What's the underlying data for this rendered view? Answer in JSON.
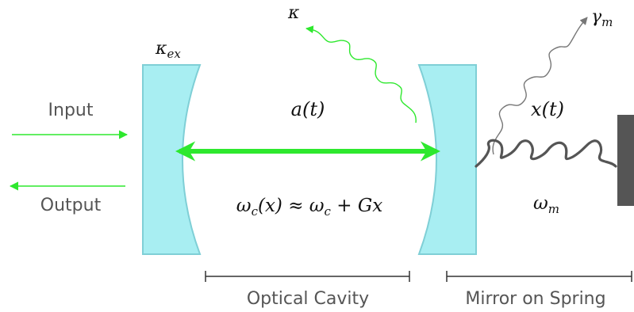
{
  "labels": {
    "input": "Input",
    "output": "Output",
    "kappa_ex": "κex",
    "kappa": "κ",
    "gamma_m": "γm",
    "a_t": "a(t)",
    "x_t": "x(t)",
    "omega_c_relation": "ωc(x) ≈ ωc + Gx",
    "omega_m": "ωm",
    "optical_cavity": "Optical Cavity",
    "mirror_on_spring": "Mirror on Spring"
  },
  "colors": {
    "mirror_fill": "#a8eef2",
    "mirror_stroke": "#7fcfd6",
    "optical_green": "#2ee82e",
    "spring_gray": "#555555",
    "wall_gray": "#555555",
    "text_gray": "#555555"
  }
}
